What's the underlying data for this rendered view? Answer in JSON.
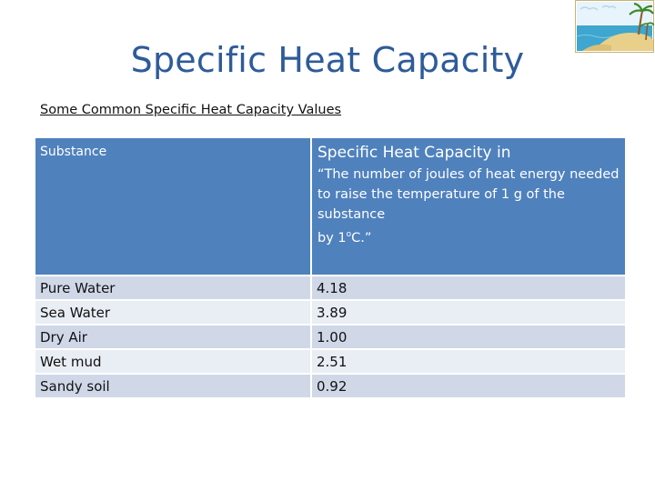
{
  "title": "Specific Heat Capacity",
  "subtitle": "Some Common Specific Heat Capacity Values",
  "table": {
    "headers": {
      "substance": "Substance",
      "shc_title": "Specific Heat Capacity in",
      "shc_desc": "“The number of joules of heat energy needed to raise the temperature of 1 g of the substance",
      "shc_unit_prefix": "by 1",
      "shc_unit_sup": "o",
      "shc_unit_suffix": "C.”"
    },
    "rows": [
      {
        "substance": "Pure Water",
        "value": "4.18"
      },
      {
        "substance": "Sea Water",
        "value": "3.89"
      },
      {
        "substance": "Dry Air",
        "value": "1.00"
      },
      {
        "substance": "Wet mud",
        "value": "2.51"
      },
      {
        "substance": "Sandy soil",
        "value": "0.92"
      }
    ]
  },
  "colors": {
    "title": "#2e5b9a",
    "header_bg": "#4f81bd",
    "row_odd": "#d0d8e8",
    "row_even": "#e9edf4"
  },
  "images": {
    "corner": "beach-island-icon"
  }
}
